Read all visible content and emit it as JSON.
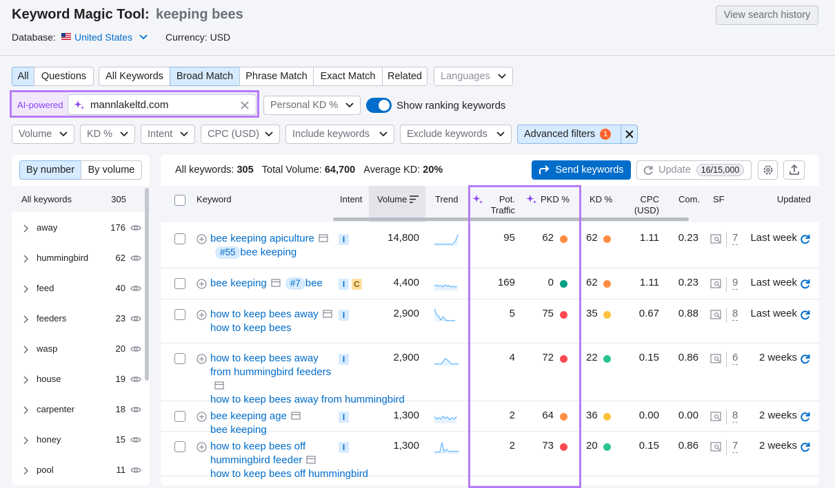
{
  "header": {
    "title": "Keyword Magic Tool:",
    "query": "keeping bees",
    "database_label": "Database:",
    "database": "United States",
    "currency": "Currency: USD",
    "history_button": "View search history"
  },
  "scope_tabs": [
    "All",
    "Questions"
  ],
  "match_tabs": [
    "All Keywords",
    "Broad Match",
    "Phrase Match",
    "Exact Match",
    "Related"
  ],
  "languages": "Languages",
  "ai": {
    "label": "AI-powered",
    "domain": "mannlakeltd.com",
    "personal_kd": "Personal KD %",
    "toggle_label": "Show ranking keywords"
  },
  "filters": [
    "Volume",
    "KD %",
    "Intent",
    "CPC (USD)",
    "Include keywords",
    "Exclude keywords"
  ],
  "advanced_filters": {
    "label": "Advanced filters",
    "count": "1"
  },
  "sidebar": {
    "views": [
      "By number",
      "By volume"
    ],
    "all_label": "All keywords",
    "all_count": "305",
    "groups": [
      {
        "name": "away",
        "count": "176"
      },
      {
        "name": "hummingbird",
        "count": "62"
      },
      {
        "name": "feed",
        "count": "40"
      },
      {
        "name": "feeders",
        "count": "23"
      },
      {
        "name": "wasp",
        "count": "20"
      },
      {
        "name": "house",
        "count": "19"
      },
      {
        "name": "carpenter",
        "count": "18"
      },
      {
        "name": "honey",
        "count": "15"
      },
      {
        "name": "pool",
        "count": "11"
      }
    ]
  },
  "summary": {
    "keywords_label": "All keywords:",
    "keywords": "305",
    "volume_label": "Total Volume:",
    "volume": "64,700",
    "kd_label": "Average KD:",
    "kd": "20%"
  },
  "actions": {
    "send": "Send keywords",
    "update": "Update",
    "credits": "16/15,000"
  },
  "table": {
    "headers": {
      "keyword": "Keyword",
      "intent": "Intent",
      "volume": "Volume",
      "trend": "Trend",
      "pot_traffic": "Pot. Traffic",
      "pkd": "PKD %",
      "kd": "KD %",
      "cpc": "CPC (USD)",
      "com": "Com.",
      "sf": "SF",
      "updated": "Updated"
    },
    "rows": [
      {
        "keyword": "bee keeping apiculture",
        "badge": "#55",
        "intents": [
          "I"
        ],
        "volume": "14,800",
        "pot_traffic": "95",
        "pkd": "62",
        "pkd_color": "#ff8c43",
        "kd": "62",
        "kd_color": "#ff8c43",
        "cpc": "1.11",
        "com": "0.23",
        "sf": "7",
        "updated": "Last week"
      },
      {
        "keyword": "bee keeping",
        "badge": "#7",
        "intents": [
          "I",
          "C"
        ],
        "volume": "4,400",
        "pot_traffic": "169",
        "pkd": "0",
        "pkd_color": "#009f81",
        "kd": "62",
        "kd_color": "#ff8c43",
        "cpc": "1.11",
        "com": "0.23",
        "sf": "9",
        "updated": "Last week"
      },
      {
        "keyword": "how to keep bees away",
        "intents": [
          "I"
        ],
        "volume": "2,900",
        "pot_traffic": "5",
        "pkd": "75",
        "pkd_color": "#ff4953",
        "kd": "35",
        "kd_color": "#fdc23c",
        "cpc": "0.67",
        "com": "0.88",
        "sf": "8",
        "updated": "Last week"
      },
      {
        "keyword": "how to keep bees away from hummingbird feeders",
        "intents": [
          "I"
        ],
        "volume": "2,900",
        "pot_traffic": "4",
        "pkd": "72",
        "pkd_color": "#ff4953",
        "kd": "22",
        "kd_color": "#2bc48a",
        "cpc": "0.15",
        "com": "0.86",
        "sf": "6",
        "updated": "2 weeks"
      },
      {
        "keyword": "bee keeping age",
        "intents": [
          "I"
        ],
        "volume": "1,300",
        "pot_traffic": "2",
        "pkd": "64",
        "pkd_color": "#ff8c43",
        "kd": "36",
        "kd_color": "#fdc23c",
        "cpc": "0.00",
        "com": "0.00",
        "sf": "8",
        "updated": "2 weeks"
      },
      {
        "keyword": "how to keep bees off hummingbird feeder",
        "intents": [
          "I"
        ],
        "volume": "1,300",
        "pot_traffic": "2",
        "pkd": "73",
        "pkd_color": "#ff4953",
        "kd": "20",
        "kd_color": "#2bc48a",
        "cpc": "0.15",
        "com": "0.86",
        "sf": "7",
        "updated": "2 weeks"
      }
    ]
  }
}
